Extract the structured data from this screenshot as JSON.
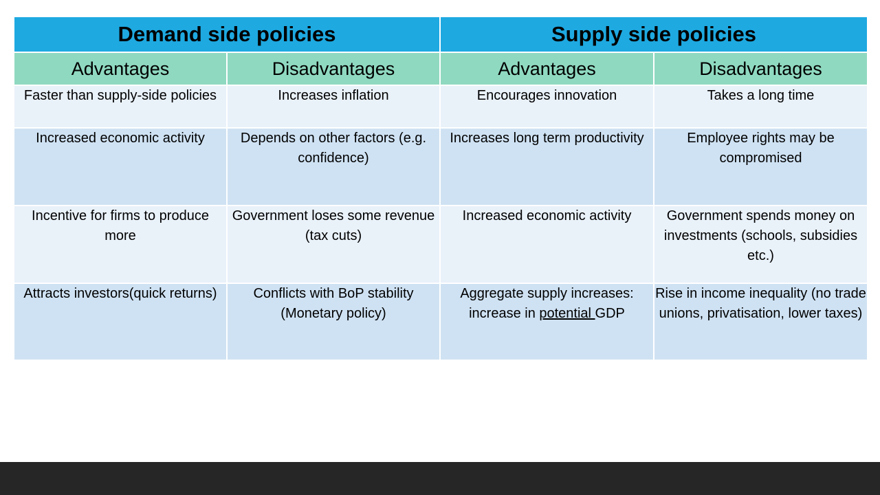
{
  "header": {
    "demand": "Demand side policies",
    "supply": "Supply side policies"
  },
  "subheaders": {
    "demand_adv": "Advantages",
    "demand_dis": "Disadvantages",
    "supply_adv": "Advantages",
    "supply_dis": "Disadvantages"
  },
  "rows": [
    {
      "demand_adv": "Faster than supply-side policies",
      "demand_dis": "Increases inflation",
      "supply_adv": "Encourages innovation",
      "supply_dis": "Takes a long time"
    },
    {
      "demand_adv": "Increased economic activity",
      "demand_dis": "Depends on other factors (e.g. confidence)",
      "supply_adv": "Increases long term productivity",
      "supply_dis": "Employee rights may be compromised"
    },
    {
      "demand_adv": "Incentive for firms to produce more",
      "demand_dis": "Government loses some revenue (tax cuts)",
      "supply_adv": "Increased economic activity",
      "supply_dis": "Government spends money on investments (schools, subsidies etc.)"
    },
    {
      "demand_adv": "Attracts investors(quick returns)",
      "demand_dis": "Conflicts with BoP stability (Monetary policy)",
      "supply_adv_part1": "Aggregate supply increases: increase in ",
      "supply_adv_part2": "potential ",
      "supply_adv_part3": "GDP",
      "supply_dis": "Rise in income inequality (no trade unions, privatisation, lower taxes)"
    }
  ]
}
